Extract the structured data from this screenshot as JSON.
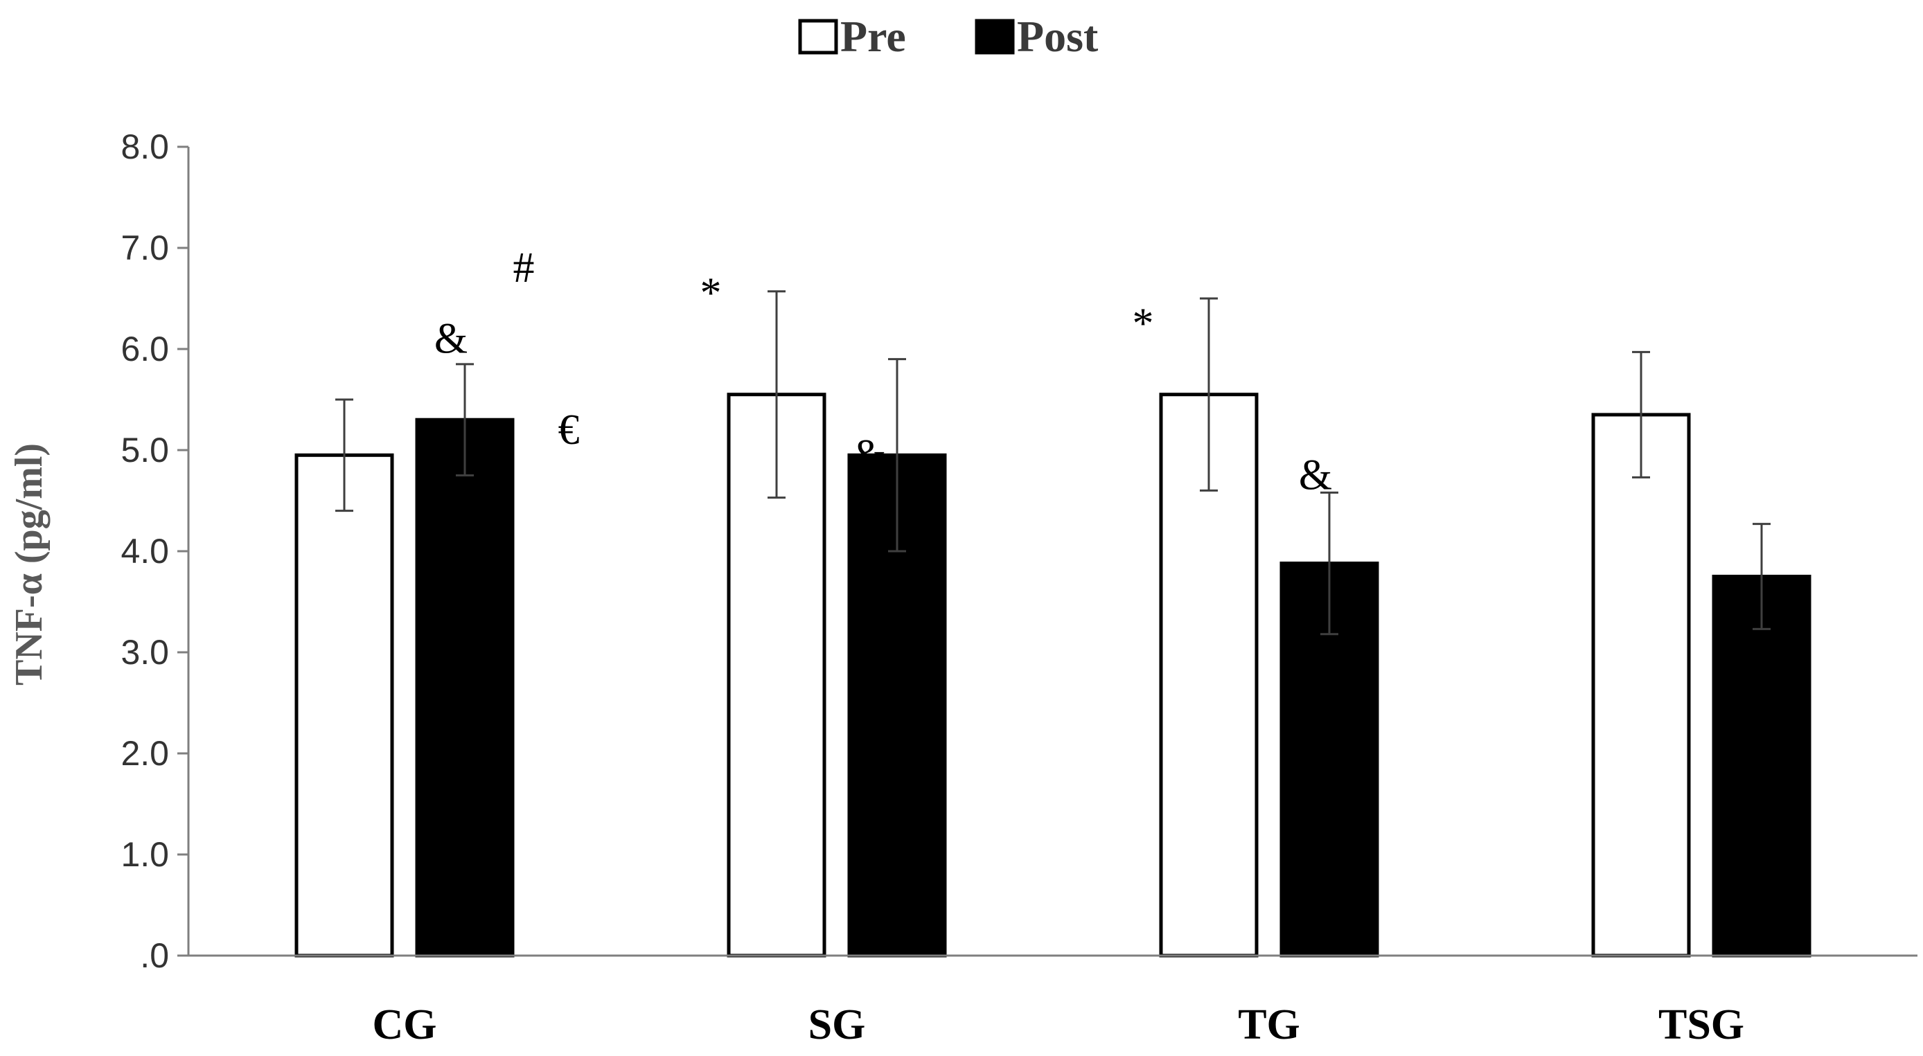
{
  "chart_data": {
    "type": "bar",
    "title": "",
    "xlabel": "",
    "ylabel": "TNF-α (pg/ml)",
    "ylim": [
      0,
      8
    ],
    "yticks": [
      ".0",
      "1.0",
      "2.0",
      "3.0",
      "4.0",
      "5.0",
      "6.0",
      "7.0",
      "8.0"
    ],
    "legend_position": "top-center",
    "grid": false,
    "categories": [
      "CG",
      "SG",
      "TG",
      "TSG"
    ],
    "series": [
      {
        "name": "Pre",
        "color": "#ffffff",
        "values": [
          4.95,
          5.55,
          5.55,
          5.35
        ],
        "errors": [
          0.55,
          1.02,
          0.95,
          0.62
        ]
      },
      {
        "name": "Post",
        "color": "#000000",
        "values": [
          5.3,
          4.95,
          3.88,
          3.75
        ],
        "errors": [
          0.55,
          0.95,
          0.7,
          0.52
        ]
      }
    ],
    "annotations": [
      {
        "text": "&",
        "category": "CG",
        "series": "Post",
        "value": 6.1
      },
      {
        "text": "#",
        "category": "CG",
        "series": "Post",
        "value": 6.8
      },
      {
        "text": "€",
        "category": "CG",
        "series": "Post",
        "value": 5.2
      },
      {
        "text": "*",
        "category": "SG",
        "series": "Pre",
        "value": 6.55
      },
      {
        "text": "&",
        "category": "SG",
        "series": "Post",
        "value": 4.95
      },
      {
        "text": "*",
        "category": "TG",
        "series": "Pre",
        "value": 6.25
      },
      {
        "text": "&",
        "category": "TG",
        "series": "Post",
        "value": 4.75
      }
    ]
  }
}
